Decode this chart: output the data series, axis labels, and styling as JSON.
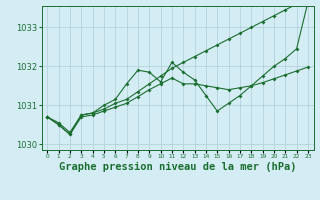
{
  "title": "Graphe pression niveau de la mer (hPa)",
  "xlabel_hours": [
    0,
    1,
    2,
    3,
    4,
    5,
    6,
    7,
    8,
    9,
    10,
    11,
    12,
    13,
    14,
    15,
    16,
    17,
    18,
    19,
    20,
    21,
    22,
    23
  ],
  "line1": [
    1030.7,
    1030.55,
    1030.3,
    1030.75,
    1030.8,
    1030.9,
    1031.05,
    1031.15,
    1031.35,
    1031.55,
    1031.75,
    1031.95,
    1032.1,
    1032.25,
    1032.4,
    1032.55,
    1032.7,
    1032.85,
    1033.0,
    1033.15,
    1033.3,
    1033.45,
    1033.6,
    1033.75
  ],
  "line2": [
    1030.7,
    1030.5,
    1030.25,
    1030.75,
    1030.8,
    1031.0,
    1031.15,
    1031.55,
    1031.9,
    1031.85,
    1031.6,
    1032.1,
    1031.85,
    1031.65,
    1031.25,
    1030.85,
    1031.05,
    1031.25,
    1031.5,
    1031.75,
    1032.0,
    1032.2,
    1032.45,
    1033.65
  ],
  "line3": [
    1030.7,
    1030.5,
    1030.25,
    1030.7,
    1030.75,
    1030.85,
    1030.95,
    1031.05,
    1031.22,
    1031.4,
    1031.55,
    1031.7,
    1031.55,
    1031.55,
    1031.5,
    1031.45,
    1031.4,
    1031.45,
    1031.5,
    1031.58,
    1031.68,
    1031.78,
    1031.88,
    1031.98
  ],
  "background_color": "#d4edf5",
  "grid_color": "#b0ccd8",
  "line_color": "#1a6e2e",
  "ylim_min": 1029.85,
  "ylim_max": 1033.55,
  "yticks": [
    1030,
    1031,
    1032,
    1033
  ],
  "title_fontsize": 7.5
}
